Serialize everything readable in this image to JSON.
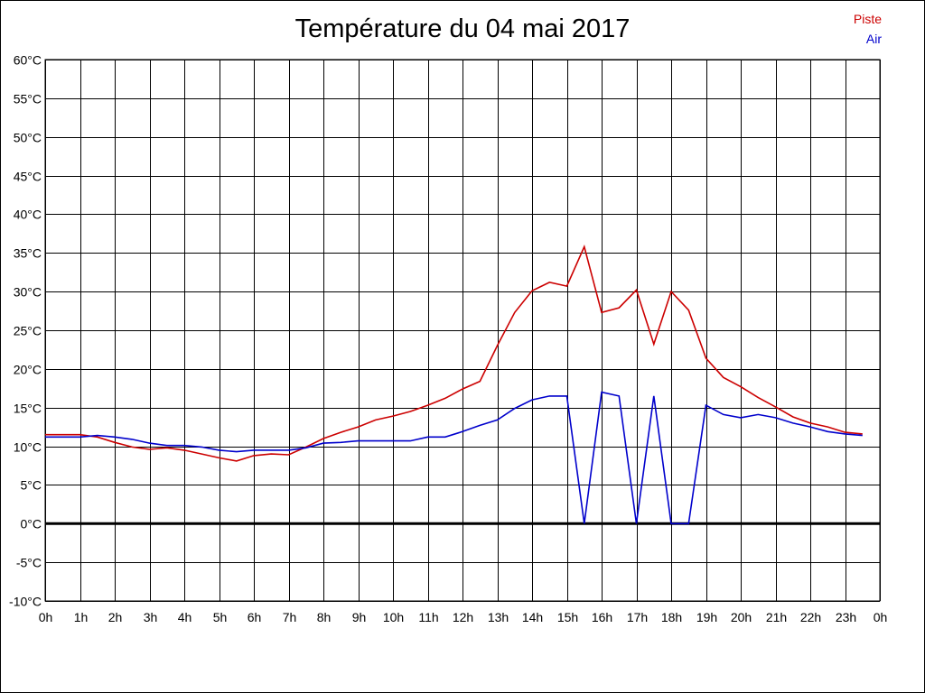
{
  "chart_data": {
    "type": "line",
    "title": "Température du 04 mai 2017",
    "y_tick_labels": [
      "60°C",
      "55°C",
      "50°C",
      "45°C",
      "40°C",
      "35°C",
      "30°C",
      "25°C",
      "20°C",
      "15°C",
      "10°C",
      "5°C",
      "0°C",
      "-5°C",
      "-10°C"
    ],
    "y_tick_values": [
      60,
      55,
      50,
      45,
      40,
      35,
      30,
      25,
      20,
      15,
      10,
      5,
      0,
      -5,
      -10
    ],
    "x_tick_labels": [
      "0h",
      "1h",
      "2h",
      "3h",
      "4h",
      "5h",
      "6h",
      "7h",
      "8h",
      "9h",
      "10h",
      "11h",
      "12h",
      "13h",
      "14h",
      "15h",
      "16h",
      "17h",
      "18h",
      "19h",
      "20h",
      "21h",
      "22h",
      "23h",
      "0h"
    ],
    "x_tick_values": [
      0,
      1,
      2,
      3,
      4,
      5,
      6,
      7,
      8,
      9,
      10,
      11,
      12,
      13,
      14,
      15,
      16,
      17,
      18,
      19,
      20,
      21,
      22,
      23,
      24
    ],
    "xlim": [
      0,
      24
    ],
    "ylim": [
      -10,
      60
    ],
    "grid": true,
    "legend_position": "top-right",
    "zero_line": true,
    "x": [
      0,
      0.5,
      1,
      1.5,
      2,
      2.5,
      3,
      3.5,
      4,
      4.5,
      5,
      5.5,
      6,
      6.5,
      7,
      7.5,
      8,
      8.5,
      9,
      9.5,
      10,
      10.5,
      11,
      11.5,
      12,
      12.5,
      13,
      13.5,
      14,
      14.5,
      15,
      15.5,
      16,
      16.5,
      17,
      17.5,
      18,
      18.5,
      19,
      19.5,
      20,
      20.5,
      21,
      21.5,
      22,
      22.5,
      23,
      23.5
    ],
    "series": [
      {
        "name": "Piste",
        "color": "#cc0000",
        "values": [
          11.5,
          11.5,
          11.5,
          11.2,
          10.5,
          9.9,
          9.6,
          9.8,
          9.5,
          9.0,
          8.5,
          8.1,
          8.8,
          9.0,
          8.9,
          9.9,
          11.0,
          11.8,
          12.5,
          13.4,
          13.9,
          14.5,
          15.3,
          16.2,
          17.4,
          18.4,
          23.0,
          27.3,
          30.1,
          31.2,
          30.7,
          35.8,
          27.3,
          27.9,
          30.2,
          23.2,
          30.0,
          27.6,
          21.4,
          18.9,
          17.7,
          16.3,
          15.1,
          13.8,
          13.0,
          12.5,
          11.8,
          11.6
        ]
      },
      {
        "name": "Air",
        "color": "#0000cc",
        "values": [
          11.2,
          11.2,
          11.2,
          11.4,
          11.2,
          10.9,
          10.4,
          10.1,
          10.1,
          9.9,
          9.5,
          9.3,
          9.5,
          9.5,
          9.5,
          9.8,
          10.4,
          10.5,
          10.7,
          10.7,
          10.7,
          10.7,
          11.2,
          11.2,
          11.9,
          12.7,
          13.4,
          14.9,
          16.0,
          16.5,
          16.5,
          0.0,
          17.0,
          16.5,
          0.0,
          16.5,
          0.0,
          0.0,
          15.3,
          14.1,
          13.7,
          14.1,
          13.7,
          13.0,
          12.5,
          11.9,
          11.6,
          11.4
        ]
      }
    ]
  }
}
